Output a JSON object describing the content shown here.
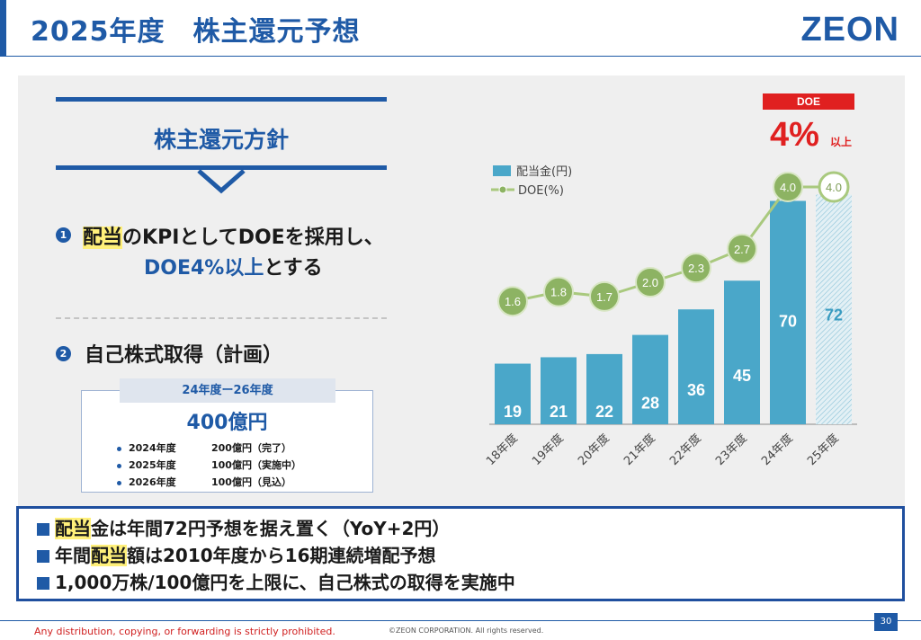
{
  "header": {
    "title": "2025年度　株主還元予想",
    "logo": "ZEON"
  },
  "policy": {
    "heading": "株主還元方針",
    "item1": {
      "num": "1",
      "hl": "配当",
      "rest1": "のKPIとしてDOEを採用し、",
      "line2_blue": "DOE4%以上",
      "line2_rest": "とする"
    },
    "item2": {
      "num": "2",
      "text": "自己株式取得（計画）"
    },
    "buyback": {
      "period": "24年度ー26年度",
      "total": "400億円",
      "rows": [
        {
          "year": "2024年度",
          "detail": "200億円（完了）"
        },
        {
          "year": "2025年度",
          "detail": "100億円（実施中）"
        },
        {
          "year": "2026年度",
          "detail": "100億円（見込）"
        }
      ]
    }
  },
  "doe_callout": {
    "badge": "DOE",
    "value": "4%",
    "suffix": "以上"
  },
  "chart_data": {
    "type": "bar",
    "categories": [
      "18年度",
      "19年度",
      "20年度",
      "21年度",
      "22年度",
      "23年度",
      "24年度",
      "25年度"
    ],
    "series": [
      {
        "name": "配当金(円)",
        "type": "bar",
        "values": [
          19,
          21,
          22,
          28,
          36,
          45,
          70,
          72
        ],
        "labels": [
          "19",
          "21",
          "22",
          "28",
          "36",
          "45",
          "70",
          "72"
        ]
      },
      {
        "name": "DOE(%)",
        "type": "line",
        "values": [
          1.6,
          1.8,
          1.7,
          2.0,
          2.3,
          2.7,
          4.0,
          4.0
        ],
        "labels": [
          "1.6",
          "1.8",
          "1.7",
          "2.0",
          "2.3",
          "2.7",
          "4.0",
          "4.0"
        ]
      }
    ],
    "forecast_category": "25年度",
    "colors": {
      "bar": "#4aa7c9",
      "forecast_bar": "#cde6ef",
      "line": "#a9c97e",
      "marker": "#8db363"
    },
    "legend_position": "top-left",
    "grid": false
  },
  "summary": [
    {
      "hl": "配当",
      "pre": "",
      "post": "金は年間72円予想を据え置く（YoY+2円）"
    },
    {
      "hl": "配当",
      "pre": "年間",
      "post": "額は2010年度から16期連続増配予想"
    },
    {
      "hl": "",
      "pre": "1,000万株/100億円を上限に、自己株式の取得を実施中",
      "post": ""
    }
  ],
  "footer": {
    "left": "Any distribution, copying, or forwarding is strictly prohibited.",
    "mid": "©ZEON CORPORATION. All rights reserved.",
    "page": "30"
  }
}
